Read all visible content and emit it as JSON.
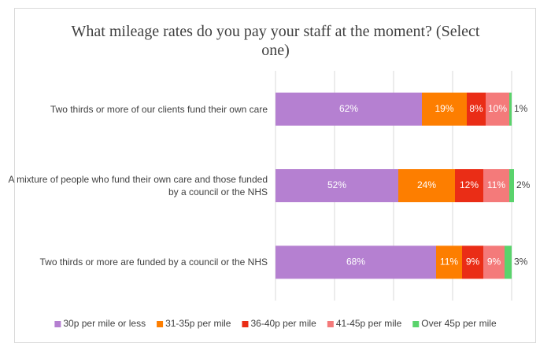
{
  "chart_data": {
    "type": "stacked-bar-horizontal",
    "title": "What mileage rates do you pay your staff at the moment? (Select one)",
    "categories": [
      "Two thirds or more of our clients fund their own care",
      "A mixture of people who fund their own care and those funded by a council or the NHS",
      "Two thirds or more are funded by a council or the NHS"
    ],
    "series": [
      {
        "name": "30p per mile or less",
        "color": "#b580d1",
        "values": [
          62,
          52,
          68
        ],
        "value_labels": [
          "62%",
          "52%",
          "68%"
        ]
      },
      {
        "name": "31-35p per mile",
        "color": "#fd7e00",
        "values": [
          19,
          24,
          11
        ],
        "value_labels": [
          "19%",
          "24%",
          "11%"
        ]
      },
      {
        "name": "36-40p per mile",
        "color": "#ea2d16",
        "values": [
          8,
          12,
          9
        ],
        "value_labels": [
          "8%",
          "12%",
          "9%"
        ]
      },
      {
        "name": "41-45p per mile",
        "color": "#f47a7a",
        "values": [
          10,
          11,
          9
        ],
        "value_labels": [
          "10%",
          "11%",
          "9%"
        ]
      },
      {
        "name": "Over 45p per mile",
        "color": "#5ad36c",
        "values": [
          1,
          2,
          3
        ],
        "value_labels": [
          "1%",
          "2%",
          "3%"
        ]
      }
    ],
    "xlim": [
      0,
      100
    ],
    "xticks": [
      0,
      25,
      50,
      75,
      100
    ],
    "grid": true,
    "legend": "bottom"
  }
}
